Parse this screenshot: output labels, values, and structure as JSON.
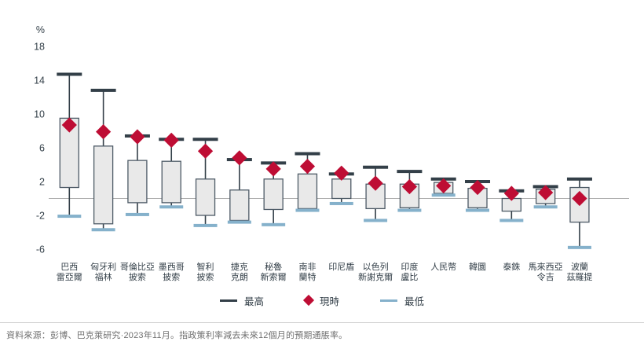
{
  "chart_data": {
    "type": "boxplot",
    "title": "",
    "unit_label": "%",
    "yticks": [
      18,
      14,
      10,
      6,
      2,
      -2,
      -6
    ],
    "ylim": [
      -6.5,
      18.5
    ],
    "grid": "zero-line-only",
    "legend_position": "bottom-center",
    "legend": [
      {
        "label": "最高",
        "marker": "dash",
        "color": "#333F48"
      },
      {
        "label": "現時",
        "marker": "diamond",
        "color": "#BE0D34"
      },
      {
        "label": "最低",
        "marker": "dash",
        "color": "#85B1CB"
      }
    ],
    "series_fields": [
      "high",
      "box_top",
      "current",
      "box_bottom",
      "low"
    ],
    "points": [
      {
        "category": "巴西雷亞爾",
        "label_lines": [
          "巴西",
          "雷亞爾"
        ],
        "high": 14.7,
        "box_top": 9.5,
        "current": 8.7,
        "box_bottom": 1.3,
        "low": -2.1
      },
      {
        "category": "匈牙利福林",
        "label_lines": [
          "匈牙利",
          "福林"
        ],
        "high": 12.8,
        "box_top": 6.2,
        "current": 7.9,
        "box_bottom": -3.0,
        "low": -3.7
      },
      {
        "category": "哥倫比亞披索",
        "label_lines": [
          "哥倫比亞",
          "披索"
        ],
        "high": 7.4,
        "box_top": 4.5,
        "current": 7.3,
        "box_bottom": -0.5,
        "low": -1.9
      },
      {
        "category": "墨西哥披索",
        "label_lines": [
          "墨西哥",
          "披索"
        ],
        "high": 7.0,
        "box_top": 4.4,
        "current": 6.9,
        "box_bottom": -0.5,
        "low": -1.0
      },
      {
        "category": "智利披索",
        "label_lines": [
          "智利",
          "披索"
        ],
        "high": 7.0,
        "box_top": 2.3,
        "current": 5.6,
        "box_bottom": -2.0,
        "low": -3.2
      },
      {
        "category": "捷克克朗",
        "label_lines": [
          "捷克",
          "克朗"
        ],
        "high": 4.6,
        "box_top": 1.0,
        "current": 4.8,
        "box_bottom": -2.6,
        "low": -2.8
      },
      {
        "category": "秘魯新索爾",
        "label_lines": [
          "秘魯",
          "新索爾"
        ],
        "high": 4.2,
        "box_top": 2.3,
        "current": 3.5,
        "box_bottom": -1.3,
        "low": -3.1
      },
      {
        "category": "南非蘭特",
        "label_lines": [
          "南非",
          "蘭特"
        ],
        "high": 5.3,
        "box_top": 2.9,
        "current": 3.8,
        "box_bottom": -1.2,
        "low": -1.4
      },
      {
        "category": "印尼盾",
        "label_lines": [
          "印尼盾"
        ],
        "high": 2.9,
        "box_top": 2.3,
        "current": 3.0,
        "box_bottom": 0.0,
        "low": -0.6
      },
      {
        "category": "以色列新謝克爾",
        "label_lines": [
          "以色列",
          "新謝克爾"
        ],
        "high": 3.7,
        "box_top": 1.7,
        "current": 1.8,
        "box_bottom": -1.2,
        "low": -2.6
      },
      {
        "category": "印度盧比",
        "label_lines": [
          "印度",
          "盧比"
        ],
        "high": 3.2,
        "box_top": 1.7,
        "current": 1.4,
        "box_bottom": -1.1,
        "low": -1.4
      },
      {
        "category": "人民幣",
        "label_lines": [
          "人民幣"
        ],
        "high": 2.3,
        "box_top": 1.9,
        "current": 1.5,
        "box_bottom": 0.6,
        "low": 0.4
      },
      {
        "category": "韓圜",
        "label_lines": [
          "韓圜"
        ],
        "high": 2.0,
        "box_top": 1.2,
        "current": 1.3,
        "box_bottom": -1.1,
        "low": -1.4
      },
      {
        "category": "泰銖",
        "label_lines": [
          "泰銖"
        ],
        "high": 0.9,
        "box_top": 0.0,
        "current": 0.6,
        "box_bottom": -1.5,
        "low": -2.6
      },
      {
        "category": "馬來西亞令吉",
        "label_lines": [
          "馬來西亞",
          "令吉"
        ],
        "high": 1.4,
        "box_top": 1.1,
        "current": 0.7,
        "box_bottom": -0.6,
        "low": -1.0
      },
      {
        "category": "波蘭茲羅提",
        "label_lines": [
          "波蘭",
          "茲羅提"
        ],
        "high": 2.3,
        "box_top": 1.3,
        "current": 0.0,
        "box_bottom": -2.8,
        "low": -5.8
      }
    ]
  },
  "colors": {
    "axis_text": "#333F48",
    "box_fill": "#E9E9E9",
    "box_border": "#4D5A66",
    "whisker": "#333F48",
    "high_cap": "#333F48",
    "low_cap": "#85B1CB",
    "current_diamond": "#BE0D34",
    "zero_line": "#ADADAD",
    "footer_text": "#6F6F6F",
    "divider": "#CFCFCF"
  },
  "footer": {
    "source_text": "資料來源：彭博、巴克萊研究·2023年11月。指政策利率減去未來12個月的預期通脹率。"
  }
}
